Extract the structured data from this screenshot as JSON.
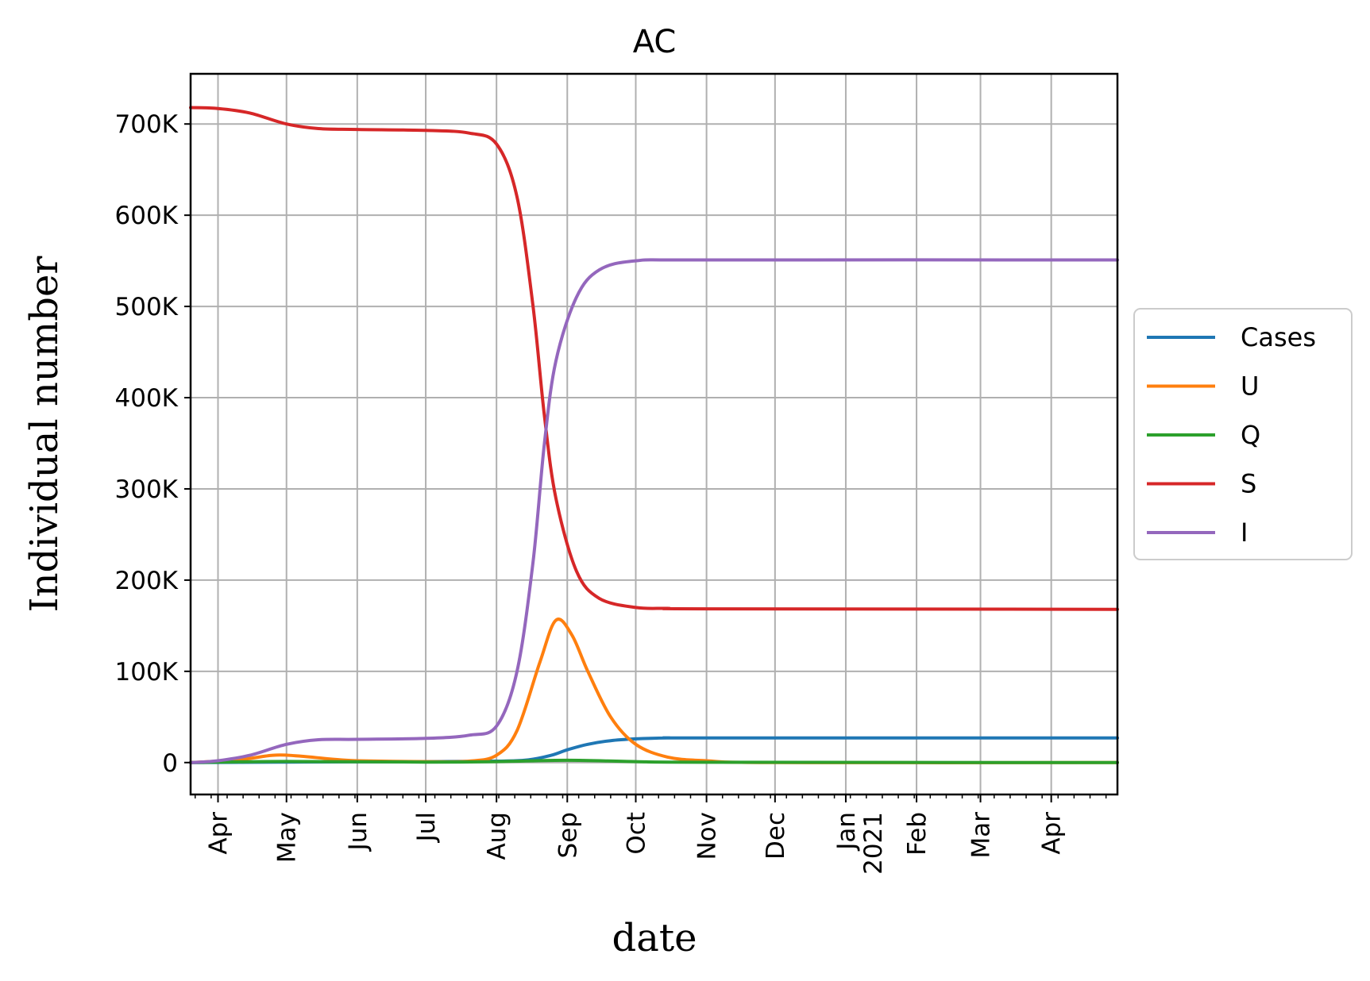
{
  "chart_data": {
    "type": "line",
    "title": "AC",
    "xlabel": "date",
    "ylabel": "Individual number",
    "x_range": [
      "2020-03-20",
      "2021-04-30"
    ],
    "ylim": [
      -35000,
      755000
    ],
    "grid": true,
    "legend_position": "outside-right",
    "y_ticks": [
      {
        "value": 0,
        "label": "0"
      },
      {
        "value": 100000,
        "label": "100K"
      },
      {
        "value": 200000,
        "label": "200K"
      },
      {
        "value": 300000,
        "label": "300K"
      },
      {
        "value": 400000,
        "label": "400K"
      },
      {
        "value": 500000,
        "label": "500K"
      },
      {
        "value": 600000,
        "label": "600K"
      },
      {
        "value": 700000,
        "label": "700K"
      }
    ],
    "x_ticks": [
      {
        "date": "2020-04-01",
        "label": "Apr"
      },
      {
        "date": "2020-05-01",
        "label": "May"
      },
      {
        "date": "2020-06-01",
        "label": "Jun"
      },
      {
        "date": "2020-07-01",
        "label": "Jul"
      },
      {
        "date": "2020-08-01",
        "label": "Aug"
      },
      {
        "date": "2020-09-01",
        "label": "Sep"
      },
      {
        "date": "2020-10-01",
        "label": "Oct"
      },
      {
        "date": "2020-11-01",
        "label": "Nov"
      },
      {
        "date": "2020-12-01",
        "label": "Dec"
      },
      {
        "date": "2021-01-01",
        "label": "Jan\n2021"
      },
      {
        "date": "2021-02-01",
        "label": "Feb"
      },
      {
        "date": "2021-03-01",
        "label": "Mar"
      },
      {
        "date": "2021-04-01",
        "label": "Apr"
      }
    ],
    "series": [
      {
        "name": "Cases",
        "color": "#1f77b4",
        "points": [
          [
            "2020-03-20",
            0
          ],
          [
            "2020-05-01",
            500
          ],
          [
            "2020-07-01",
            1000
          ],
          [
            "2020-08-01",
            1500
          ],
          [
            "2020-08-15",
            3000
          ],
          [
            "2020-08-25",
            8000
          ],
          [
            "2020-09-01",
            14000
          ],
          [
            "2020-09-10",
            20000
          ],
          [
            "2020-09-20",
            24000
          ],
          [
            "2020-10-01",
            26000
          ],
          [
            "2020-10-15",
            27000
          ],
          [
            "2020-11-01",
            27000
          ],
          [
            "2021-04-30",
            27000
          ]
        ]
      },
      {
        "name": "U",
        "color": "#ff7f0e",
        "points": [
          [
            "2020-03-20",
            0
          ],
          [
            "2020-04-10",
            3000
          ],
          [
            "2020-04-25",
            8000
          ],
          [
            "2020-05-05",
            7500
          ],
          [
            "2020-05-20",
            4000
          ],
          [
            "2020-06-01",
            2000
          ],
          [
            "2020-07-01",
            1000
          ],
          [
            "2020-07-20",
            1500
          ],
          [
            "2020-08-01",
            8000
          ],
          [
            "2020-08-10",
            35000
          ],
          [
            "2020-08-20",
            110000
          ],
          [
            "2020-08-27",
            156000
          ],
          [
            "2020-09-03",
            140000
          ],
          [
            "2020-09-10",
            100000
          ],
          [
            "2020-09-20",
            50000
          ],
          [
            "2020-10-01",
            20000
          ],
          [
            "2020-10-15",
            6000
          ],
          [
            "2020-11-01",
            2000
          ],
          [
            "2020-12-01",
            0
          ],
          [
            "2021-04-30",
            0
          ]
        ]
      },
      {
        "name": "Q",
        "color": "#2ca02c",
        "points": [
          [
            "2020-03-20",
            0
          ],
          [
            "2020-05-01",
            1200
          ],
          [
            "2020-07-01",
            500
          ],
          [
            "2020-08-01",
            1000
          ],
          [
            "2020-09-01",
            2500
          ],
          [
            "2020-10-01",
            1000
          ],
          [
            "2020-11-01",
            300
          ],
          [
            "2021-04-30",
            0
          ]
        ]
      },
      {
        "name": "S",
        "color": "#d62728",
        "points": [
          [
            "2020-03-20",
            718000
          ],
          [
            "2020-04-01",
            717000
          ],
          [
            "2020-04-15",
            712000
          ],
          [
            "2020-05-01",
            700000
          ],
          [
            "2020-05-15",
            695000
          ],
          [
            "2020-06-01",
            694000
          ],
          [
            "2020-07-01",
            693000
          ],
          [
            "2020-07-20",
            690000
          ],
          [
            "2020-08-01",
            678000
          ],
          [
            "2020-08-10",
            620000
          ],
          [
            "2020-08-17",
            500000
          ],
          [
            "2020-08-22",
            380000
          ],
          [
            "2020-08-27",
            290000
          ],
          [
            "2020-09-05",
            210000
          ],
          [
            "2020-09-15",
            180000
          ],
          [
            "2020-10-01",
            170000
          ],
          [
            "2020-10-15",
            169000
          ],
          [
            "2020-11-01",
            168500
          ],
          [
            "2021-04-30",
            168000
          ]
        ]
      },
      {
        "name": "I",
        "color": "#9467bd",
        "points": [
          [
            "2020-03-20",
            0
          ],
          [
            "2020-04-01",
            2000
          ],
          [
            "2020-04-15",
            8000
          ],
          [
            "2020-05-01",
            20000
          ],
          [
            "2020-05-15",
            25000
          ],
          [
            "2020-06-01",
            25500
          ],
          [
            "2020-07-01",
            26500
          ],
          [
            "2020-07-20",
            30000
          ],
          [
            "2020-08-01",
            40000
          ],
          [
            "2020-08-10",
            100000
          ],
          [
            "2020-08-17",
            220000
          ],
          [
            "2020-08-22",
            350000
          ],
          [
            "2020-08-27",
            440000
          ],
          [
            "2020-09-05",
            510000
          ],
          [
            "2020-09-15",
            540000
          ],
          [
            "2020-10-01",
            550000
          ],
          [
            "2020-11-01",
            551000
          ],
          [
            "2021-04-30",
            551000
          ]
        ]
      }
    ]
  }
}
